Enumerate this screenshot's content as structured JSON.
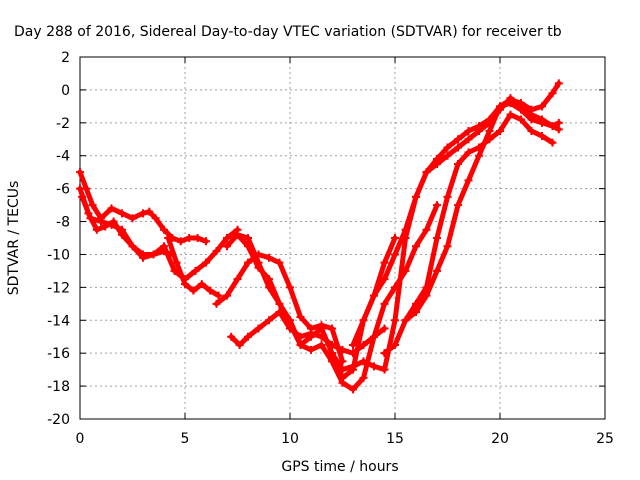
{
  "chart_data": {
    "type": "scatter",
    "title": "Day 288 of 2016, Sidereal Day-to-day VTEC variation (SDTVAR) for receiver tb",
    "xlabel": "GPS time / hours",
    "ylabel": "SDTVAR / TECUs",
    "xlim": [
      0,
      25
    ],
    "ylim": [
      -20,
      2
    ],
    "xticks": [
      "0",
      "5",
      "10",
      "15",
      "20",
      "25"
    ],
    "yticks": [
      "2",
      "0",
      "-2",
      "-4",
      "-6",
      "-8",
      "-10",
      "-12",
      "-14",
      "-16",
      "-18",
      "-20"
    ],
    "grid": true,
    "marker": "plus",
    "color": "#ff0000",
    "series": [
      {
        "x": [
          0.0,
          0.3,
          0.6,
          1.0,
          1.5,
          2.0,
          2.5,
          3.0,
          3.3,
          3.6,
          4.0,
          4.4,
          4.8,
          5.2,
          5.6,
          6.0
        ],
        "y": [
          -5.0,
          -6.0,
          -7.0,
          -7.8,
          -7.2,
          -7.5,
          -7.8,
          -7.5,
          -7.4,
          -7.8,
          -8.5,
          -9.0,
          -9.2,
          -9.0,
          -9.0,
          -9.2
        ]
      },
      {
        "x": [
          0.0,
          0.4,
          0.8,
          1.2,
          1.6,
          2.0,
          2.5,
          3.0,
          3.5,
          4.0,
          4.3
        ],
        "y": [
          -6.0,
          -7.5,
          -8.5,
          -8.3,
          -8.0,
          -8.8,
          -9.5,
          -10.0,
          -10.0,
          -9.8,
          -10.0
        ]
      },
      {
        "x": [
          0.1,
          0.5,
          1.0,
          1.5,
          2.0,
          2.5,
          3.0,
          3.5,
          4.0,
          4.5,
          5.0,
          5.5,
          6.0,
          6.5,
          7.0,
          7.5
        ],
        "y": [
          -6.5,
          -7.8,
          -8.0,
          -8.2,
          -8.5,
          -9.5,
          -10.2,
          -10.0,
          -9.5,
          -11.0,
          -11.5,
          -11.0,
          -10.5,
          -9.8,
          -9.0,
          -8.5
        ]
      },
      {
        "x": [
          4.2,
          4.6,
          5.0,
          5.4,
          5.8,
          6.2,
          6.6
        ],
        "y": [
          -9.0,
          -10.5,
          -11.8,
          -12.2,
          -11.8,
          -12.2,
          -12.5
        ]
      },
      {
        "x": [
          6.5,
          7.0,
          7.5,
          8.0,
          8.5,
          9.0,
          9.5,
          10.0,
          10.5,
          11.0,
          11.5,
          12.0,
          12.5
        ],
        "y": [
          -13.0,
          -12.5,
          -11.5,
          -10.5,
          -10.0,
          -10.2,
          -10.5,
          -12.0,
          -13.8,
          -14.5,
          -14.3,
          -14.5,
          -16.5
        ]
      },
      {
        "x": [
          7.2,
          7.6,
          8.0,
          8.5,
          9.0,
          9.5,
          10.0,
          10.5,
          11.0,
          11.5,
          12.0,
          12.5,
          13.0,
          13.5,
          14.0,
          14.5
        ],
        "y": [
          -15.0,
          -15.5,
          -15.0,
          -14.5,
          -14.0,
          -13.5,
          -14.5,
          -15.0,
          -14.8,
          -15.0,
          -15.5,
          -15.8,
          -16.0,
          -15.5,
          -15.0,
          -14.5
        ]
      },
      {
        "x": [
          7.0,
          7.5,
          8.0,
          8.5,
          9.0,
          9.5,
          10.0,
          10.5,
          11.0,
          11.5,
          12.0,
          12.5,
          13.0,
          13.5,
          14.0,
          14.5,
          15.0
        ],
        "y": [
          -9.5,
          -8.8,
          -9.0,
          -10.5,
          -12.0,
          -13.0,
          -14.0,
          -15.5,
          -15.0,
          -14.5,
          -16.0,
          -17.5,
          -17.0,
          -14.0,
          -12.5,
          -10.5,
          -9.0
        ]
      },
      {
        "x": [
          7.5,
          8.0,
          8.5,
          9.0,
          9.5,
          10.0,
          10.5,
          11.0,
          11.5,
          12.0,
          12.5,
          13.0,
          13.5,
          14.0,
          14.5,
          15.0,
          15.5,
          16.0,
          16.5,
          17.0
        ],
        "y": [
          -8.8,
          -9.5,
          -10.8,
          -11.5,
          -13.0,
          -14.2,
          -15.5,
          -15.8,
          -15.5,
          -16.5,
          -17.8,
          -18.2,
          -17.5,
          -15.0,
          -13.0,
          -12.0,
          -11.0,
          -9.5,
          -8.5,
          -7.0
        ]
      },
      {
        "x": [
          12.0,
          12.5,
          13.0,
          13.5,
          14.0,
          14.5,
          15.0,
          15.5,
          16.0,
          16.5,
          17.0,
          17.5,
          18.0,
          18.5,
          19.0,
          19.5,
          20.0,
          20.5,
          21.0,
          21.5,
          22.0,
          22.5,
          22.8
        ],
        "y": [
          -16.0,
          -17.0,
          -16.8,
          -16.5,
          -16.8,
          -17.0,
          -14.0,
          -9.0,
          -6.5,
          -5.0,
          -4.2,
          -3.5,
          -3.0,
          -2.5,
          -2.2,
          -1.8,
          -1.0,
          -0.8,
          -1.2,
          -1.8,
          -2.0,
          -2.2,
          -2.0
        ]
      },
      {
        "x": [
          13.0,
          13.5,
          14.0,
          14.5,
          15.0,
          15.5,
          16.0,
          16.5,
          17.0,
          17.5,
          18.0,
          18.5,
          19.0,
          19.5,
          20.0,
          20.5,
          21.0,
          21.5,
          22.0,
          22.5,
          22.8
        ],
        "y": [
          -15.5,
          -14.0,
          -12.5,
          -11.5,
          -10.0,
          -8.5,
          -6.5,
          -5.0,
          -4.5,
          -4.0,
          -3.5,
          -3.0,
          -2.5,
          -2.0,
          -1.2,
          -0.5,
          -1.0,
          -1.5,
          -1.8,
          -2.2,
          -2.4
        ]
      },
      {
        "x": [
          14.5,
          15.0,
          15.5,
          16.0,
          16.5,
          17.0,
          17.5,
          18.0,
          18.5,
          19.0,
          19.5,
          20.0,
          20.5,
          21.0,
          21.5,
          22.0,
          22.5
        ],
        "y": [
          -16.0,
          -15.5,
          -14.0,
          -13.0,
          -12.0,
          -9.0,
          -6.5,
          -4.5,
          -3.8,
          -3.5,
          -3.0,
          -2.5,
          -1.5,
          -1.8,
          -2.5,
          -2.8,
          -3.2
        ]
      },
      {
        "x": [
          15.5,
          16.0,
          16.5,
          17.0,
          17.5,
          18.0,
          18.5,
          19.0,
          19.5,
          20.0,
          20.5,
          21.0,
          21.5,
          22.0,
          22.5,
          22.8
        ],
        "y": [
          -14.0,
          -13.5,
          -12.5,
          -11.0,
          -9.5,
          -7.0,
          -5.5,
          -4.0,
          -2.5,
          -1.0,
          -0.6,
          -0.8,
          -1.2,
          -1.0,
          -0.2,
          0.4
        ]
      }
    ]
  }
}
